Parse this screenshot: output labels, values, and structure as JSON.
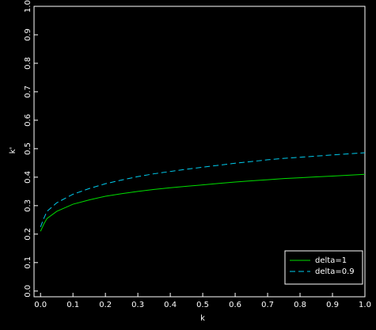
{
  "chart_data": {
    "type": "line",
    "x_label": "k",
    "y_label": "k'",
    "x": [
      0,
      0.01,
      0.02,
      0.05,
      0.1,
      0.15,
      0.2,
      0.25,
      0.3,
      0.35,
      0.4,
      0.45,
      0.5,
      0.55,
      0.6,
      0.65,
      0.7,
      0.75,
      0.8,
      0.85,
      0.9,
      0.95,
      1.0
    ],
    "series": [
      {
        "name": "delta=1",
        "color": "#00dd00",
        "dash": false,
        "values": [
          0.21,
          0.235,
          0.255,
          0.28,
          0.305,
          0.32,
          0.333,
          0.342,
          0.35,
          0.357,
          0.363,
          0.368,
          0.373,
          0.378,
          0.383,
          0.387,
          0.391,
          0.395,
          0.398,
          0.401,
          0.404,
          0.407,
          0.41
        ]
      },
      {
        "name": "delta=0.9",
        "color": "#00ccee",
        "dash": true,
        "values": [
          0.225,
          0.255,
          0.28,
          0.31,
          0.34,
          0.36,
          0.377,
          0.39,
          0.402,
          0.412,
          0.42,
          0.428,
          0.435,
          0.442,
          0.449,
          0.455,
          0.461,
          0.466,
          0.47,
          0.474,
          0.478,
          0.482,
          0.486
        ]
      }
    ],
    "xlim": [
      -0.02,
      1.0
    ],
    "xticks": [
      {
        "value": 0,
        "label": "0.0"
      },
      0.1,
      0.2,
      0.3,
      0.4,
      0.5,
      0.6,
      0.7,
      0.8,
      0.9,
      {
        "value": 1,
        "label": "1.0"
      }
    ],
    "ylim": [
      -0.02,
      1.0
    ],
    "yticks": [
      {
        "value": 0,
        "label": "0.0"
      },
      0.1,
      0.2,
      0.3,
      0.4,
      0.5,
      0.6,
      0.7,
      0.8,
      0.9,
      {
        "value": 1,
        "label": "1.0"
      }
    ],
    "legend": "lower right"
  }
}
